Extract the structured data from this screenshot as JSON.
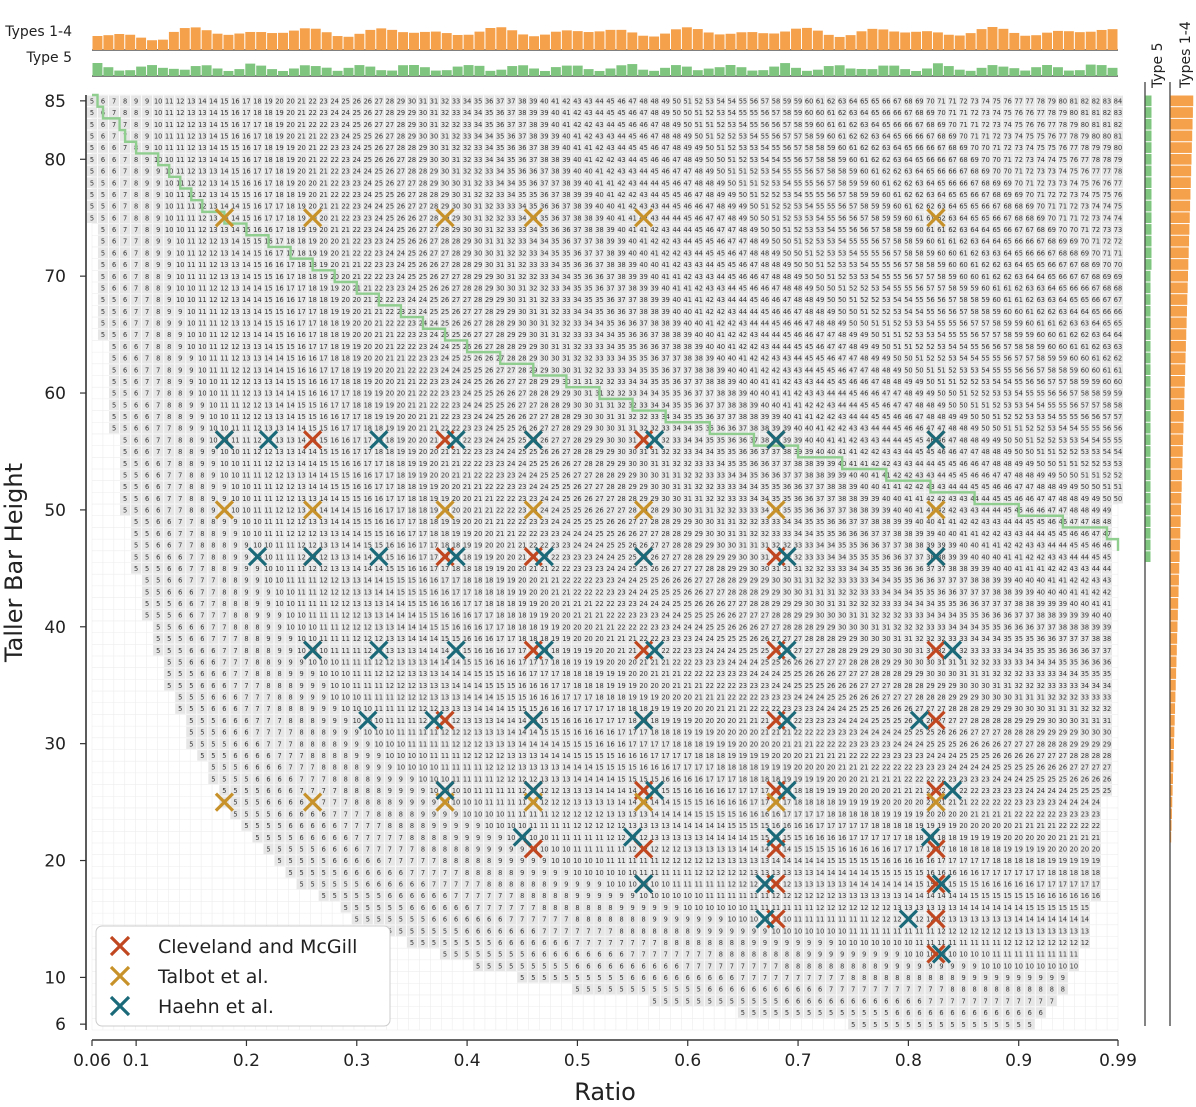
{
  "chart_data": {
    "type": "heatmap",
    "xlabel": "Ratio",
    "ylabel": "Taller Bar Height",
    "xlim": [
      0.06,
      0.99
    ],
    "ylim": [
      6,
      85
    ],
    "xticks": [
      0.06,
      0.1,
      0.2,
      0.3,
      0.4,
      0.5,
      0.6,
      0.7,
      0.8,
      0.9,
      0.99
    ],
    "xtick_labels": [
      "0.06",
      "0.1",
      "0.2",
      "0.3",
      "0.4",
      "0.5",
      "0.6",
      "0.7",
      "0.8",
      "0.9",
      "0.99"
    ],
    "yticks": [
      6,
      10,
      20,
      30,
      40,
      50,
      60,
      70,
      80,
      85
    ],
    "ytick_labels": [
      "6",
      "10",
      "20",
      "30",
      "40",
      "50",
      "60",
      "70",
      "80",
      "85"
    ],
    "grid": true,
    "cell_label_rule": "smaller bar height = round(ratio x taller bar height); shown where smaller height >= 5",
    "top_histograms": [
      {
        "name": "Types 1-4",
        "color": "#f5a04a"
      },
      {
        "name": "Type 5",
        "color": "#7fc47f"
      }
    ],
    "side_histograms": [
      {
        "name": "Type 5",
        "color": "#7fc47f"
      },
      {
        "name": "Types 1-4",
        "color": "#f5a04a"
      }
    ],
    "type5_boundary_color": "#8fce8f",
    "type5_boundary": [
      [
        0.06,
        85
      ],
      [
        0.065,
        84
      ],
      [
        0.07,
        83
      ],
      [
        0.085,
        82
      ],
      [
        0.09,
        81
      ],
      [
        0.1,
        80
      ],
      [
        0.12,
        79
      ],
      [
        0.13,
        78
      ],
      [
        0.14,
        77
      ],
      [
        0.15,
        76
      ],
      [
        0.16,
        75
      ],
      [
        0.18,
        74
      ],
      [
        0.2,
        73
      ],
      [
        0.22,
        72
      ],
      [
        0.24,
        71
      ],
      [
        0.26,
        70
      ],
      [
        0.28,
        69
      ],
      [
        0.3,
        68
      ],
      [
        0.32,
        67
      ],
      [
        0.34,
        66
      ],
      [
        0.36,
        65
      ],
      [
        0.38,
        64
      ],
      [
        0.4,
        63
      ],
      [
        0.43,
        62
      ],
      [
        0.46,
        61
      ],
      [
        0.49,
        60
      ],
      [
        0.52,
        59
      ],
      [
        0.55,
        58
      ],
      [
        0.58,
        57
      ],
      [
        0.62,
        56
      ],
      [
        0.66,
        55
      ],
      [
        0.7,
        54
      ],
      [
        0.74,
        53
      ],
      [
        0.78,
        52
      ],
      [
        0.82,
        51
      ],
      [
        0.86,
        50
      ],
      [
        0.9,
        49
      ],
      [
        0.94,
        48
      ],
      [
        0.98,
        47
      ],
      [
        0.99,
        46
      ]
    ],
    "series": [
      {
        "name": "Cleveland and McGill",
        "color": "#c0471f",
        "points": [
          [
            0.18,
            56
          ],
          [
            0.26,
            56
          ],
          [
            0.38,
            56
          ],
          [
            0.46,
            56
          ],
          [
            0.56,
            56
          ],
          [
            0.68,
            56
          ],
          [
            0.825,
            56
          ],
          [
            0.26,
            46
          ],
          [
            0.38,
            46
          ],
          [
            0.46,
            46
          ],
          [
            0.56,
            46
          ],
          [
            0.68,
            46
          ],
          [
            0.825,
            46
          ],
          [
            0.26,
            38
          ],
          [
            0.46,
            38
          ],
          [
            0.56,
            38
          ],
          [
            0.68,
            38
          ],
          [
            0.825,
            38
          ],
          [
            0.38,
            32
          ],
          [
            0.46,
            32
          ],
          [
            0.56,
            32
          ],
          [
            0.68,
            32
          ],
          [
            0.825,
            32
          ],
          [
            0.38,
            26
          ],
          [
            0.46,
            26
          ],
          [
            0.56,
            26
          ],
          [
            0.68,
            26
          ],
          [
            0.825,
            26
          ],
          [
            0.46,
            21
          ],
          [
            0.56,
            21
          ],
          [
            0.68,
            21
          ],
          [
            0.825,
            21
          ],
          [
            0.56,
            18
          ],
          [
            0.68,
            18
          ],
          [
            0.825,
            18
          ],
          [
            0.68,
            15
          ],
          [
            0.825,
            15
          ],
          [
            0.825,
            12
          ]
        ]
      },
      {
        "name": "Talbot et al.",
        "color": "#c8922a",
        "points": [
          [
            0.18,
            75
          ],
          [
            0.26,
            75
          ],
          [
            0.38,
            75
          ],
          [
            0.46,
            75
          ],
          [
            0.56,
            75
          ],
          [
            0.825,
            75
          ],
          [
            0.18,
            50
          ],
          [
            0.26,
            50
          ],
          [
            0.38,
            50
          ],
          [
            0.46,
            50
          ],
          [
            0.56,
            50
          ],
          [
            0.68,
            50
          ],
          [
            0.825,
            50
          ],
          [
            0.18,
            25
          ],
          [
            0.26,
            25
          ],
          [
            0.38,
            25
          ],
          [
            0.46,
            25
          ],
          [
            0.56,
            25
          ],
          [
            0.68,
            25
          ],
          [
            0.825,
            25
          ]
        ]
      },
      {
        "name": "Haehn et al.",
        "color": "#1a6a7a",
        "points": [
          [
            0.18,
            56
          ],
          [
            0.22,
            56
          ],
          [
            0.32,
            56
          ],
          [
            0.39,
            56
          ],
          [
            0.46,
            56
          ],
          [
            0.57,
            56
          ],
          [
            0.68,
            56
          ],
          [
            0.825,
            56
          ],
          [
            0.21,
            46
          ],
          [
            0.26,
            46
          ],
          [
            0.32,
            46
          ],
          [
            0.39,
            46
          ],
          [
            0.47,
            46
          ],
          [
            0.56,
            46
          ],
          [
            0.69,
            46
          ],
          [
            0.825,
            46
          ],
          [
            0.26,
            38
          ],
          [
            0.32,
            38
          ],
          [
            0.39,
            38
          ],
          [
            0.47,
            38
          ],
          [
            0.57,
            38
          ],
          [
            0.69,
            38
          ],
          [
            0.84,
            38
          ],
          [
            0.31,
            32
          ],
          [
            0.37,
            32
          ],
          [
            0.46,
            32
          ],
          [
            0.56,
            32
          ],
          [
            0.69,
            32
          ],
          [
            0.81,
            32
          ],
          [
            0.38,
            26
          ],
          [
            0.46,
            26
          ],
          [
            0.57,
            26
          ],
          [
            0.69,
            26
          ],
          [
            0.84,
            26
          ],
          [
            0.45,
            22
          ],
          [
            0.55,
            22
          ],
          [
            0.68,
            22
          ],
          [
            0.82,
            22
          ],
          [
            0.56,
            18
          ],
          [
            0.67,
            18
          ],
          [
            0.83,
            18
          ],
          [
            0.67,
            15
          ],
          [
            0.8,
            15
          ],
          [
            0.83,
            12
          ]
        ]
      }
    ],
    "legend_position": "bottom-left"
  }
}
